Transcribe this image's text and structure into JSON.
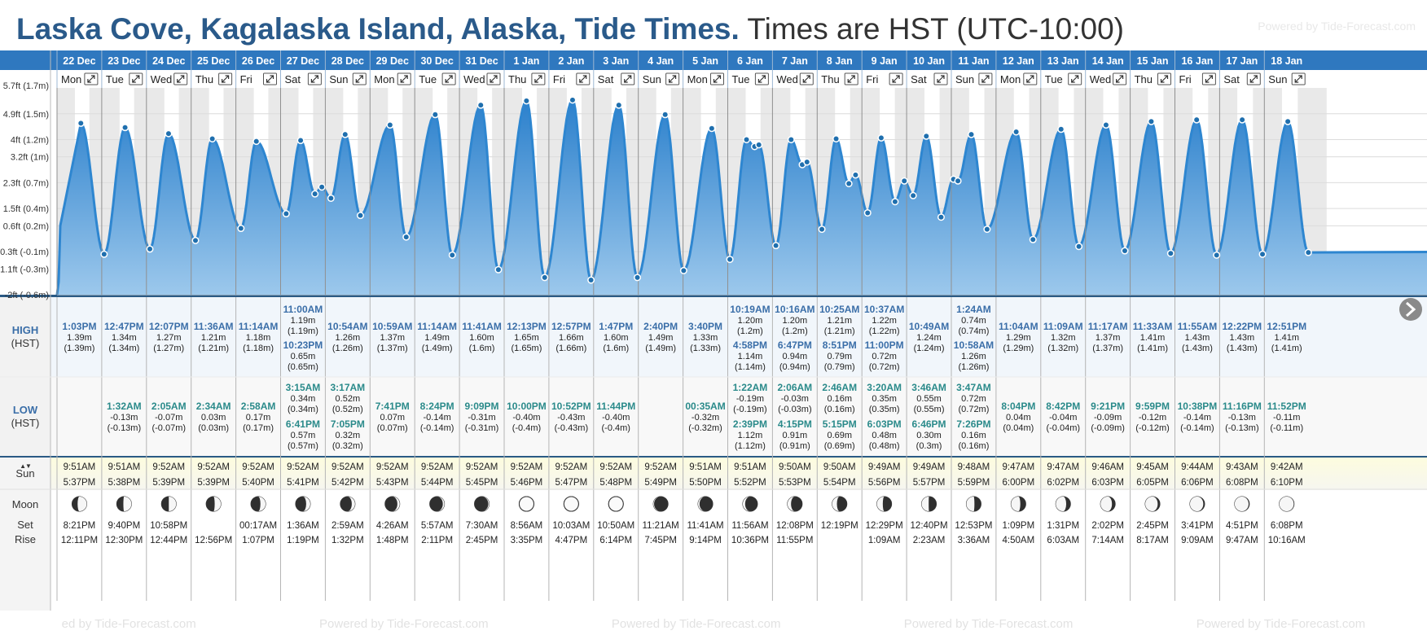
{
  "title": {
    "location": "Laska Cove, Kagalaska Island, Alaska, Tide Times.",
    "timezone": "Times are HST (UTC-10:00)"
  },
  "powered_by": "Powered by Tide-Forecast.com",
  "watermark": [
    "ed by Tide-Forecast.com",
    "Powered by Tide-Forecast.com",
    "Powered by Tide-Forecast.com",
    "Powered by Tide-Forecast.com",
    "Powered by Tide-Forecast.com"
  ],
  "row_labels": {
    "high": "HIGH",
    "low": "LOW",
    "hst": "(HST)",
    "sun": "Sun",
    "moon": "Moon",
    "set": "Set",
    "rise": "Rise",
    "sun_arrows": "▲▼"
  },
  "colors": {
    "header": "#2f78bf",
    "wave": "#2e86d0",
    "hightime": "#3a6ea8",
    "lowtime": "#2a8a8a"
  },
  "icons": [
    "expand-icon",
    "moon-phase-icon",
    "next-arrow-icon"
  ],
  "chart_data": {
    "type": "area",
    "title": "Tide height",
    "ylim": [
      -0.6,
      1.8
    ],
    "ytick_values": [
      1.5,
      1.2,
      1.0,
      0.7,
      0.4,
      0.2,
      -0.1,
      -0.3,
      -0.6
    ],
    "yticks": [
      "4.9ft (1.5m)",
      "4ft (1.2m)",
      "3.2ft (1m)",
      "2.3ft (0.7m)",
      "1.5ft (0.4m)",
      "0.6ft (0.2m)",
      "-0.3ft (-0.1m)",
      "-1.1ft (-0.3m)",
      "-2ft (-0.6m)"
    ],
    "ytick_top": "5.7ft (1.7m)",
    "days": [
      {
        "date": "22 Dec",
        "dow": "Mon",
        "highs": [
          {
            "t": "1:03PM",
            "m": "1.39m",
            "ft": "(1.39m)"
          }
        ],
        "lows": [],
        "sunrise": "9:51AM",
        "sunset": "5:37PM",
        "moonset": "8:21PM",
        "moonrise": "12:11PM",
        "phase": 0.38
      },
      {
        "date": "23 Dec",
        "dow": "Tue",
        "highs": [
          {
            "t": "12:47PM",
            "m": "1.34m",
            "ft": "(1.34m)"
          }
        ],
        "lows": [
          {
            "t": "1:32AM",
            "m": "-0.13m",
            "ft": "(-0.13m)"
          }
        ],
        "sunrise": "9:51AM",
        "sunset": "5:38PM",
        "moonset": "9:40PM",
        "moonrise": "12:30PM",
        "phase": 0.45
      },
      {
        "date": "24 Dec",
        "dow": "Wed",
        "highs": [
          {
            "t": "12:07PM",
            "m": "1.27m",
            "ft": "(1.27m)"
          }
        ],
        "lows": [
          {
            "t": "2:05AM",
            "m": "-0.07m",
            "ft": "(-0.07m)"
          }
        ],
        "sunrise": "9:52AM",
        "sunset": "5:39PM",
        "moonset": "10:58PM",
        "moonrise": "12:44PM",
        "phase": 0.5
      },
      {
        "date": "25 Dec",
        "dow": "Thu",
        "highs": [
          {
            "t": "11:36AM",
            "m": "1.21m",
            "ft": "(1.21m)"
          }
        ],
        "lows": [
          {
            "t": "2:34AM",
            "m": "0.03m",
            "ft": "(0.03m)"
          }
        ],
        "sunrise": "9:52AM",
        "sunset": "5:39PM",
        "moonset": "",
        "moonrise": "12:56PM",
        "phase": 0.58
      },
      {
        "date": "26 Dec",
        "dow": "Fri",
        "highs": [
          {
            "t": "11:14AM",
            "m": "1.18m",
            "ft": "(1.18m)"
          }
        ],
        "lows": [
          {
            "t": "2:58AM",
            "m": "0.17m",
            "ft": "(0.17m)"
          }
        ],
        "sunrise": "9:52AM",
        "sunset": "5:40PM",
        "moonset": "00:17AM",
        "moonrise": "1:07PM",
        "phase": 0.65
      },
      {
        "date": "27 Dec",
        "dow": "Sat",
        "highs": [
          {
            "t": "11:00AM",
            "m": "1.19m",
            "ft": "(1.19m)"
          },
          {
            "t": "10:23PM",
            "m": "0.65m",
            "ft": "(0.65m)"
          }
        ],
        "lows": [
          {
            "t": "3:15AM",
            "m": "0.34m",
            "ft": "(0.34m)"
          },
          {
            "t": "6:41PM",
            "m": "0.57m",
            "ft": "(0.57m)"
          }
        ],
        "sunrise": "9:52AM",
        "sunset": "5:41PM",
        "moonset": "1:36AM",
        "moonrise": "1:19PM",
        "phase": 0.72
      },
      {
        "date": "28 Dec",
        "dow": "Sun",
        "highs": [
          {
            "t": "10:54AM",
            "m": "1.26m",
            "ft": "(1.26m)"
          }
        ],
        "lows": [
          {
            "t": "3:17AM",
            "m": "0.52m",
            "ft": "(0.52m)"
          },
          {
            "t": "7:05PM",
            "m": "0.32m",
            "ft": "(0.32m)"
          }
        ],
        "sunrise": "9:52AM",
        "sunset": "5:42PM",
        "moonset": "2:59AM",
        "moonrise": "1:32PM",
        "phase": 0.78
      },
      {
        "date": "29 Dec",
        "dow": "Mon",
        "highs": [
          {
            "t": "10:59AM",
            "m": "1.37m",
            "ft": "(1.37m)"
          }
        ],
        "lows": [
          {
            "t": "7:41PM",
            "m": "0.07m",
            "ft": "(0.07m)"
          }
        ],
        "sunrise": "9:52AM",
        "sunset": "5:43PM",
        "moonset": "4:26AM",
        "moonrise": "1:48PM",
        "phase": 0.84
      },
      {
        "date": "30 Dec",
        "dow": "Tue",
        "highs": [
          {
            "t": "11:14AM",
            "m": "1.49m",
            "ft": "(1.49m)"
          }
        ],
        "lows": [
          {
            "t": "8:24PM",
            "m": "-0.14m",
            "ft": "(-0.14m)"
          }
        ],
        "sunrise": "9:52AM",
        "sunset": "5:44PM",
        "moonset": "5:57AM",
        "moonrise": "2:11PM",
        "phase": 0.89
      },
      {
        "date": "31 Dec",
        "dow": "Wed",
        "highs": [
          {
            "t": "11:41AM",
            "m": "1.60m",
            "ft": "(1.6m)"
          }
        ],
        "lows": [
          {
            "t": "9:09PM",
            "m": "-0.31m",
            "ft": "(-0.31m)"
          }
        ],
        "sunrise": "9:52AM",
        "sunset": "5:45PM",
        "moonset": "7:30AM",
        "moonrise": "2:45PM",
        "phase": 0.94
      },
      {
        "date": "1 Jan",
        "dow": "Thu",
        "highs": [
          {
            "t": "12:13PM",
            "m": "1.65m",
            "ft": "(1.65m)"
          }
        ],
        "lows": [
          {
            "t": "10:00PM",
            "m": "-0.40m",
            "ft": "(-0.4m)"
          }
        ],
        "sunrise": "9:52AM",
        "sunset": "5:46PM",
        "moonset": "8:56AM",
        "moonrise": "3:35PM",
        "phase": 0.98
      },
      {
        "date": "2 Jan",
        "dow": "Fri",
        "highs": [
          {
            "t": "12:57PM",
            "m": "1.66m",
            "ft": "(1.66m)"
          }
        ],
        "lows": [
          {
            "t": "10:52PM",
            "m": "-0.43m",
            "ft": "(-0.43m)"
          }
        ],
        "sunrise": "9:52AM",
        "sunset": "5:47PM",
        "moonset": "10:03AM",
        "moonrise": "4:47PM",
        "phase": 1.0
      },
      {
        "date": "3 Jan",
        "dow": "Sat",
        "highs": [
          {
            "t": "1:47PM",
            "m": "1.60m",
            "ft": "(1.6m)"
          }
        ],
        "lows": [
          {
            "t": "11:44PM",
            "m": "-0.40m",
            "ft": "(-0.4m)"
          }
        ],
        "sunrise": "9:52AM",
        "sunset": "5:48PM",
        "moonset": "10:50AM",
        "moonrise": "6:14PM",
        "phase": 0.98
      },
      {
        "date": "4 Jan",
        "dow": "Sun",
        "highs": [
          {
            "t": "2:40PM",
            "m": "1.49m",
            "ft": "(1.49m)"
          }
        ],
        "lows": [],
        "sunrise": "9:52AM",
        "sunset": "5:49PM",
        "moonset": "11:21AM",
        "moonrise": "7:45PM",
        "phase": 0.95
      },
      {
        "date": "5 Jan",
        "dow": "Mon",
        "highs": [
          {
            "t": "3:40PM",
            "m": "1.33m",
            "ft": "(1.33m)"
          }
        ],
        "lows": [
          {
            "t": "00:35AM",
            "m": "-0.32m",
            "ft": "(-0.32m)"
          }
        ],
        "sunrise": "9:51AM",
        "sunset": "5:50PM",
        "moonset": "11:41AM",
        "moonrise": "9:14PM",
        "phase": 0.9
      },
      {
        "date": "6 Jan",
        "dow": "Tue",
        "highs": [
          {
            "t": "10:19AM",
            "m": "1.20m",
            "ft": "(1.2m)"
          },
          {
            "t": "4:58PM",
            "m": "1.14m",
            "ft": "(1.14m)"
          }
        ],
        "lows": [
          {
            "t": "1:22AM",
            "m": "-0.19m",
            "ft": "(-0.19m)"
          },
          {
            "t": "2:39PM",
            "m": "1.12m",
            "ft": "(1.12m)"
          }
        ],
        "sunrise": "9:51AM",
        "sunset": "5:52PM",
        "moonset": "11:56AM",
        "moonrise": "10:36PM",
        "phase": 0.84
      },
      {
        "date": "7 Jan",
        "dow": "Wed",
        "highs": [
          {
            "t": "10:16AM",
            "m": "1.20m",
            "ft": "(1.2m)"
          },
          {
            "t": "6:47PM",
            "m": "0.94m",
            "ft": "(0.94m)"
          }
        ],
        "lows": [
          {
            "t": "2:06AM",
            "m": "-0.03m",
            "ft": "(-0.03m)"
          },
          {
            "t": "4:15PM",
            "m": "0.91m",
            "ft": "(0.91m)"
          }
        ],
        "sunrise": "9:50AM",
        "sunset": "5:53PM",
        "moonset": "12:08PM",
        "moonrise": "11:55PM",
        "phase": 0.76
      },
      {
        "date": "8 Jan",
        "dow": "Thu",
        "highs": [
          {
            "t": "10:25AM",
            "m": "1.21m",
            "ft": "(1.21m)"
          },
          {
            "t": "8:51PM",
            "m": "0.79m",
            "ft": "(0.79m)"
          }
        ],
        "lows": [
          {
            "t": "2:46AM",
            "m": "0.16m",
            "ft": "(0.16m)"
          },
          {
            "t": "5:15PM",
            "m": "0.69m",
            "ft": "(0.69m)"
          }
        ],
        "sunrise": "9:50AM",
        "sunset": "5:54PM",
        "moonset": "12:19PM",
        "moonrise": "",
        "phase": 0.68
      },
      {
        "date": "9 Jan",
        "dow": "Fri",
        "highs": [
          {
            "t": "10:37AM",
            "m": "1.22m",
            "ft": "(1.22m)"
          },
          {
            "t": "11:00PM",
            "m": "0.72m",
            "ft": "(0.72m)"
          }
        ],
        "lows": [
          {
            "t": "3:20AM",
            "m": "0.35m",
            "ft": "(0.35m)"
          },
          {
            "t": "6:03PM",
            "m": "0.48m",
            "ft": "(0.48m)"
          }
        ],
        "sunrise": "9:49AM",
        "sunset": "5:56PM",
        "moonset": "12:29PM",
        "moonrise": "1:09AM",
        "phase": 0.6
      },
      {
        "date": "10 Jan",
        "dow": "Sat",
        "highs": [
          {
            "t": "10:49AM",
            "m": "1.24m",
            "ft": "(1.24m)"
          }
        ],
        "lows": [
          {
            "t": "3:46AM",
            "m": "0.55m",
            "ft": "(0.55m)"
          },
          {
            "t": "6:46PM",
            "m": "0.30m",
            "ft": "(0.3m)"
          }
        ],
        "sunrise": "9:49AM",
        "sunset": "5:57PM",
        "moonset": "12:40PM",
        "moonrise": "2:23AM",
        "phase": 0.52
      },
      {
        "date": "11 Jan",
        "dow": "Sun",
        "highs": [
          {
            "t": "1:24AM",
            "m": "0.74m",
            "ft": "(0.74m)"
          },
          {
            "t": "10:58AM",
            "m": "1.26m",
            "ft": "(1.26m)"
          }
        ],
        "lows": [
          {
            "t": "3:47AM",
            "m": "0.72m",
            "ft": "(0.72m)"
          },
          {
            "t": "7:26PM",
            "m": "0.16m",
            "ft": "(0.16m)"
          }
        ],
        "sunrise": "9:48AM",
        "sunset": "5:59PM",
        "moonset": "12:53PM",
        "moonrise": "3:36AM",
        "phase": 0.45
      },
      {
        "date": "12 Jan",
        "dow": "Mon",
        "highs": [
          {
            "t": "11:04AM",
            "m": "1.29m",
            "ft": "(1.29m)"
          }
        ],
        "lows": [
          {
            "t": "8:04PM",
            "m": "0.04m",
            "ft": "(0.04m)"
          }
        ],
        "sunrise": "9:47AM",
        "sunset": "6:00PM",
        "moonset": "1:09PM",
        "moonrise": "4:50AM",
        "phase": 0.37
      },
      {
        "date": "13 Jan",
        "dow": "Tue",
        "highs": [
          {
            "t": "11:09AM",
            "m": "1.32m",
            "ft": "(1.32m)"
          }
        ],
        "lows": [
          {
            "t": "8:42PM",
            "m": "-0.04m",
            "ft": "(-0.04m)"
          }
        ],
        "sunrise": "9:47AM",
        "sunset": "6:02PM",
        "moonset": "1:31PM",
        "moonrise": "6:03AM",
        "phase": 0.29
      },
      {
        "date": "14 Jan",
        "dow": "Wed",
        "highs": [
          {
            "t": "11:17AM",
            "m": "1.37m",
            "ft": "(1.37m)"
          }
        ],
        "lows": [
          {
            "t": "9:21PM",
            "m": "-0.09m",
            "ft": "(-0.09m)"
          }
        ],
        "sunrise": "9:46AM",
        "sunset": "6:03PM",
        "moonset": "2:02PM",
        "moonrise": "7:14AM",
        "phase": 0.22
      },
      {
        "date": "15 Jan",
        "dow": "Thu",
        "highs": [
          {
            "t": "11:33AM",
            "m": "1.41m",
            "ft": "(1.41m)"
          }
        ],
        "lows": [
          {
            "t": "9:59PM",
            "m": "-0.12m",
            "ft": "(-0.12m)"
          }
        ],
        "sunrise": "9:45AM",
        "sunset": "6:05PM",
        "moonset": "2:45PM",
        "moonrise": "8:17AM",
        "phase": 0.15
      },
      {
        "date": "16 Jan",
        "dow": "Fri",
        "highs": [
          {
            "t": "11:55AM",
            "m": "1.43m",
            "ft": "(1.43m)"
          }
        ],
        "lows": [
          {
            "t": "10:38PM",
            "m": "-0.14m",
            "ft": "(-0.14m)"
          }
        ],
        "sunrise": "9:44AM",
        "sunset": "6:06PM",
        "moonset": "3:41PM",
        "moonrise": "9:09AM",
        "phase": 0.09
      },
      {
        "date": "17 Jan",
        "dow": "Sat",
        "highs": [
          {
            "t": "12:22PM",
            "m": "1.43m",
            "ft": "(1.43m)"
          }
        ],
        "lows": [
          {
            "t": "11:16PM",
            "m": "-0.13m",
            "ft": "(-0.13m)"
          }
        ],
        "sunrise": "9:43AM",
        "sunset": "6:08PM",
        "moonset": "4:51PM",
        "moonrise": "9:47AM",
        "phase": 0.05
      },
      {
        "date": "18 Jan",
        "dow": "Sun",
        "highs": [
          {
            "t": "12:51PM",
            "m": "1.41m",
            "ft": "(1.41m)"
          }
        ],
        "lows": [
          {
            "t": "11:52PM",
            "m": "-0.11m",
            "ft": "(-0.11m)"
          }
        ],
        "sunrise": "9:42AM",
        "sunset": "6:10PM",
        "moonset": "6:08PM",
        "moonrise": "10:16AM",
        "phase": 0.02
      }
    ]
  }
}
